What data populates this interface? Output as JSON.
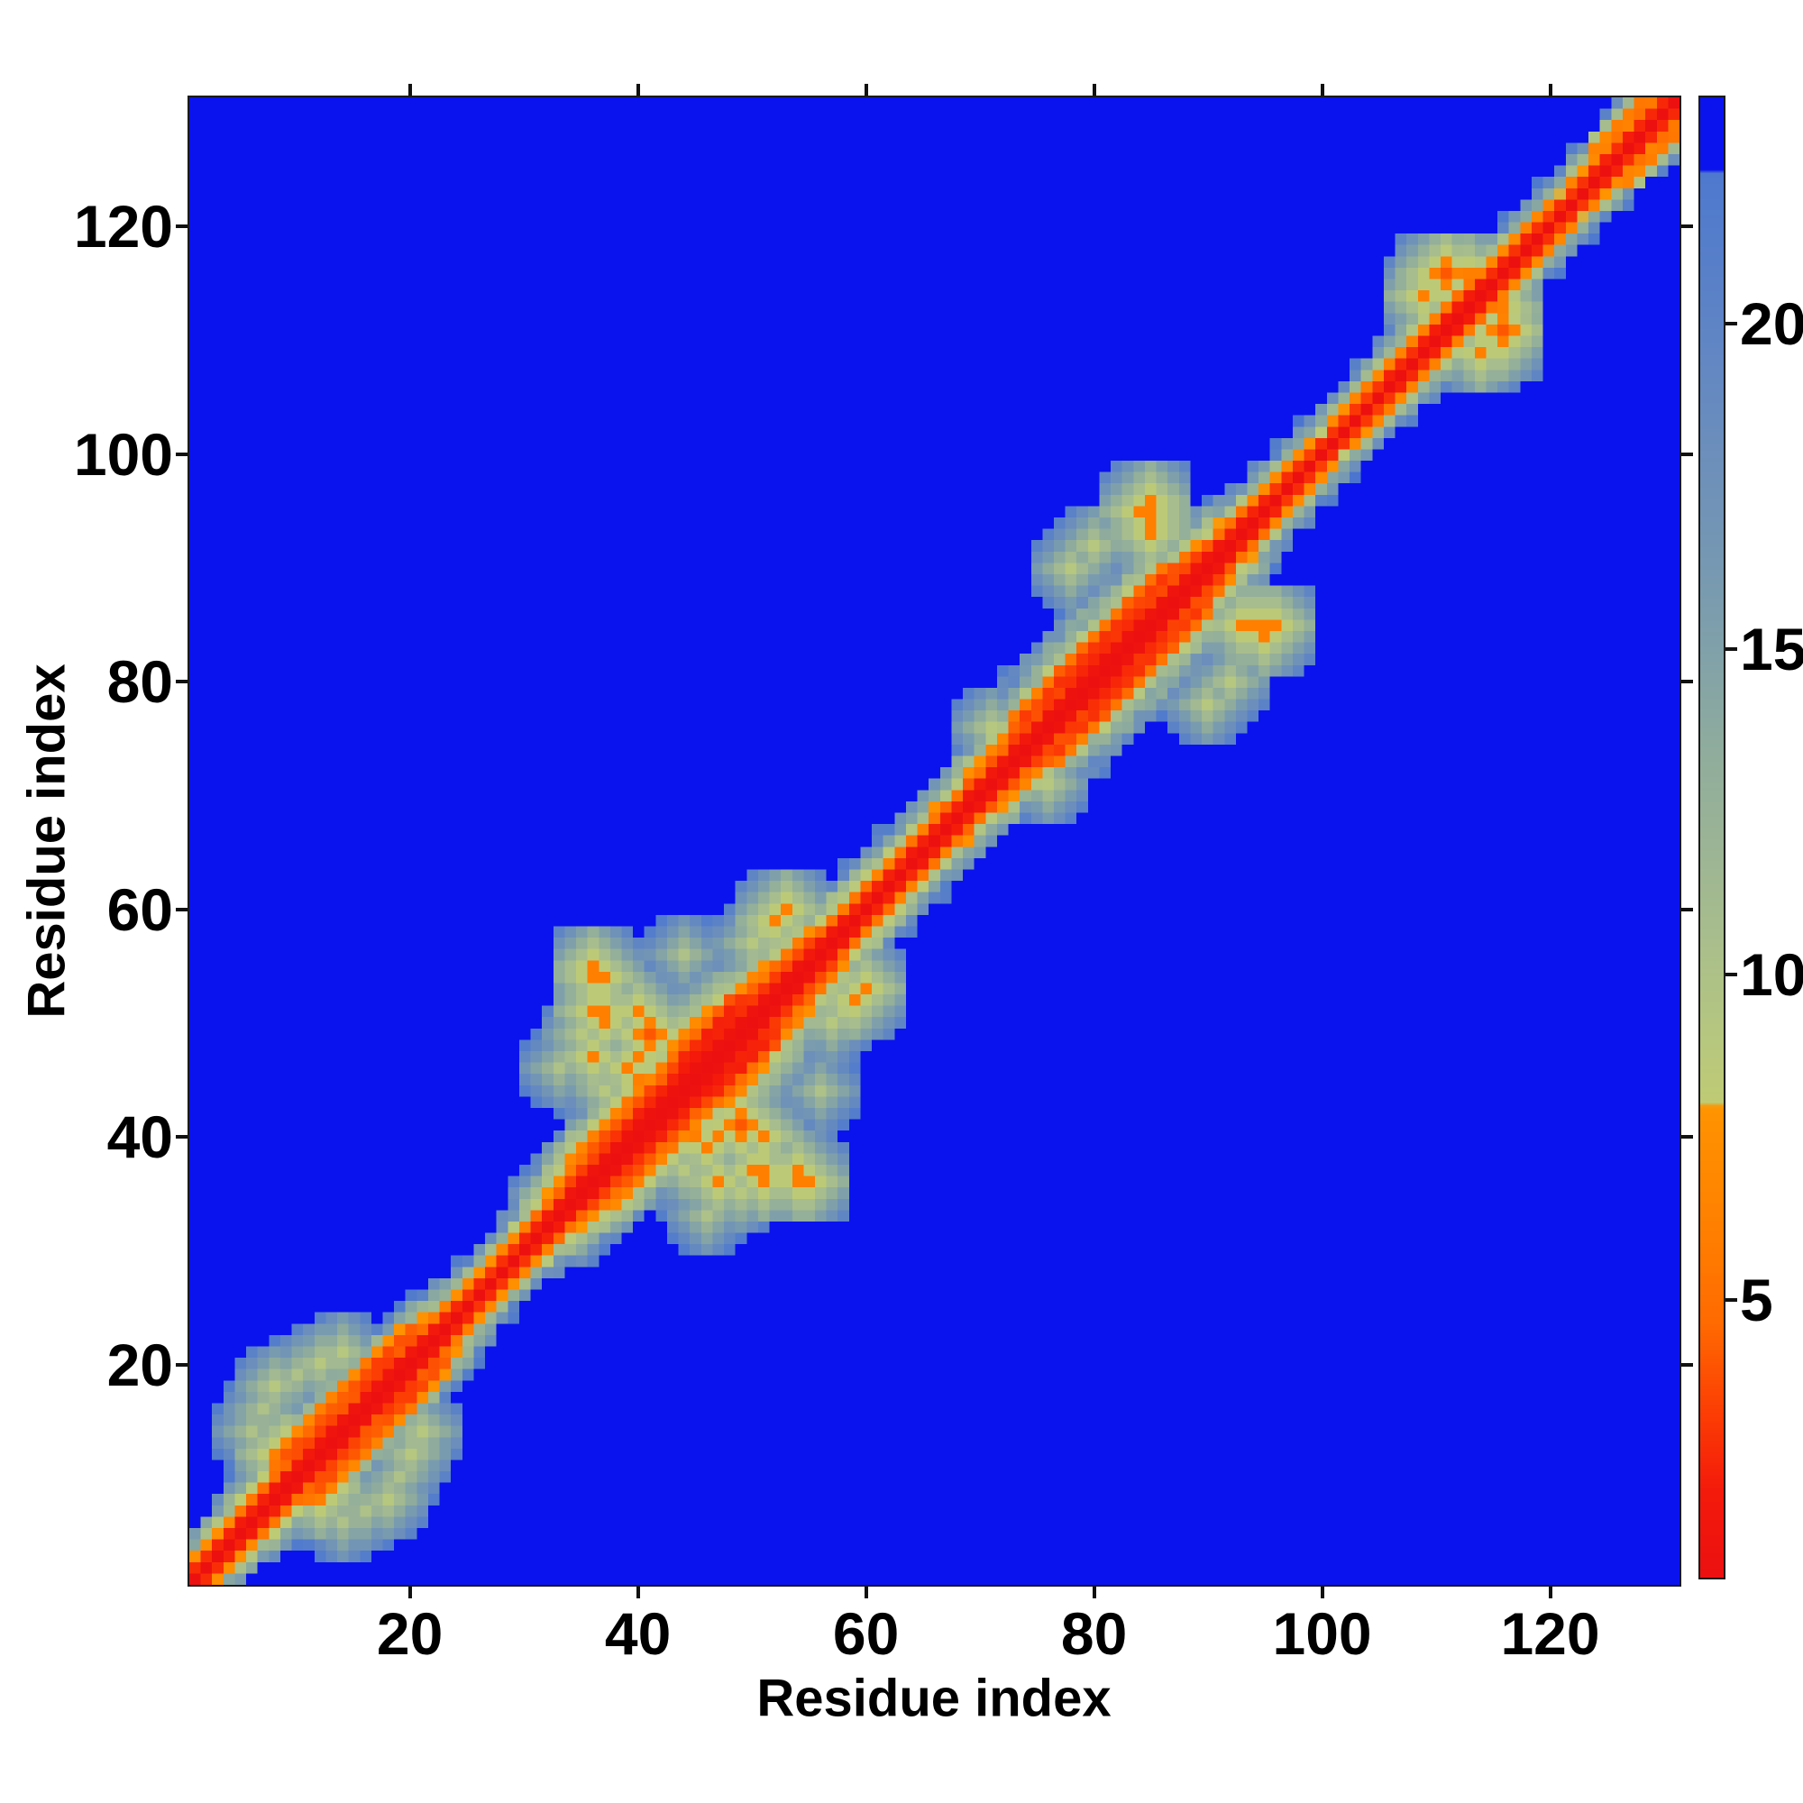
{
  "figure": {
    "background_color": "#ffffff",
    "kind": "residue distance map heatmap with colorbar"
  },
  "axes": {
    "xlabel": "Residue index",
    "ylabel": "Residue index",
    "x_tick_values": [
      20,
      40,
      60,
      80,
      100,
      120
    ],
    "y_tick_values": [
      20,
      40,
      60,
      80,
      100,
      120
    ]
  },
  "colorbar": {
    "tick_values": [
      5,
      10,
      15,
      20
    ],
    "orientation": "vertical",
    "position": "right"
  },
  "chart_data": {
    "type": "heatmap",
    "title": "",
    "xlabel": "Residue index",
    "ylabel": "Residue index",
    "n_residues": 131,
    "x_range": [
      0.5,
      131.5
    ],
    "y_range": [
      0.5,
      131.5
    ],
    "value_min": 0.7,
    "value_max": 23.5,
    "cap_value": 22.4,
    "cap_color": "#0a13ee",
    "grid": false,
    "legend": "colorbar right, ticks 5/10/15/20",
    "colorbar_ticks": [
      5,
      10,
      15,
      20
    ],
    "colormap_stops": [
      [
        0.7,
        "#ec1010"
      ],
      [
        2.0,
        "#f41a0b"
      ],
      [
        3.2,
        "#fc3d04"
      ],
      [
        4.6,
        "#ff6a01"
      ],
      [
        6.0,
        "#ff7f00"
      ],
      [
        7.95,
        "#ff9400"
      ],
      [
        8.0,
        "#bfcb74"
      ],
      [
        9.0,
        "#b6c77f"
      ],
      [
        10.5,
        "#a9be8c"
      ],
      [
        12.0,
        "#9bb495"
      ],
      [
        13.5,
        "#8fac9d"
      ],
      [
        15.0,
        "#80a1a9"
      ],
      [
        16.5,
        "#7597b3"
      ],
      [
        18.0,
        "#6c8fbb"
      ],
      [
        19.5,
        "#6287c3"
      ],
      [
        21.0,
        "#577fc9"
      ],
      [
        22.35,
        "#4e79ce"
      ],
      [
        23.5,
        "#0a13ee"
      ]
    ],
    "diagonal_value": 0.7,
    "band_exponent": 1.35,
    "noise": {
      "base": 0.84,
      "amp": 0.34
    },
    "envelope_breakpoints": [
      [
        1,
        4.5
      ],
      [
        4,
        5
      ],
      [
        8,
        6.5
      ],
      [
        12,
        7.5
      ],
      [
        16,
        8.5
      ],
      [
        20,
        8
      ],
      [
        23,
        6
      ],
      [
        26,
        4.8
      ],
      [
        30,
        4.8
      ],
      [
        33,
        7
      ],
      [
        36,
        9
      ],
      [
        40,
        11
      ],
      [
        44,
        11.5
      ],
      [
        48,
        11
      ],
      [
        52,
        9.5
      ],
      [
        55,
        8
      ],
      [
        58,
        6.5
      ],
      [
        62,
        5.5
      ],
      [
        66,
        6
      ],
      [
        70,
        6.5
      ],
      [
        74,
        7.5
      ],
      [
        78,
        9.5
      ],
      [
        82,
        10.5
      ],
      [
        86,
        9.5
      ],
      [
        90,
        8
      ],
      [
        93,
        6
      ],
      [
        96,
        5
      ],
      [
        100,
        4.6
      ],
      [
        104,
        4.8
      ],
      [
        108,
        5.4
      ],
      [
        112,
        6
      ],
      [
        116,
        5.6
      ],
      [
        120,
        4.6
      ],
      [
        124,
        4.8
      ],
      [
        128,
        5.8
      ],
      [
        131,
        5.5
      ]
    ],
    "helix_ranges": [
      [
        8,
        23
      ],
      [
        44,
        52
      ],
      [
        73,
        90
      ],
      [
        124,
        131
      ]
    ],
    "contacts": [
      [
        9,
        12,
        4
      ],
      [
        8,
        12,
        6
      ],
      [
        6,
        14,
        10
      ],
      [
        7,
        16,
        10
      ],
      [
        8,
        18,
        9
      ],
      [
        10,
        19,
        10
      ],
      [
        12,
        20,
        9
      ],
      [
        14,
        21,
        9
      ],
      [
        33,
        46,
        10
      ],
      [
        35,
        49,
        9
      ],
      [
        36,
        47,
        6
      ],
      [
        36,
        51,
        6
      ],
      [
        37,
        51,
        6
      ],
      [
        36,
        54,
        6
      ],
      [
        36,
        55,
        6
      ],
      [
        37,
        50,
        6
      ],
      [
        37,
        54,
        6
      ],
      [
        37,
        44,
        9
      ],
      [
        39,
        46,
        6
      ],
      [
        40,
        45,
        6
      ],
      [
        40,
        47,
        6
      ],
      [
        40,
        51,
        6
      ],
      [
        41,
        49,
        4
      ],
      [
        44,
        48,
        5
      ],
      [
        45,
        49,
        6
      ],
      [
        46,
        50,
        6
      ],
      [
        47,
        51,
        6
      ],
      [
        44,
        56,
        10
      ],
      [
        50,
        57,
        9
      ],
      [
        51,
        58,
        9
      ],
      [
        52,
        59,
        6
      ],
      [
        53,
        60,
        6
      ],
      [
        71,
        76,
        9
      ],
      [
        78,
        90,
        9
      ],
      [
        80,
        92,
        9
      ],
      [
        84,
        95,
        6
      ],
      [
        85,
        93,
        6
      ],
      [
        85,
        94,
        6
      ],
      [
        85,
        95,
        6
      ],
      [
        85,
        96,
        6
      ],
      [
        109,
        114,
        6
      ],
      [
        110,
        116,
        6
      ],
      [
        111,
        116,
        4
      ],
      [
        113,
        116,
        6
      ]
    ]
  }
}
